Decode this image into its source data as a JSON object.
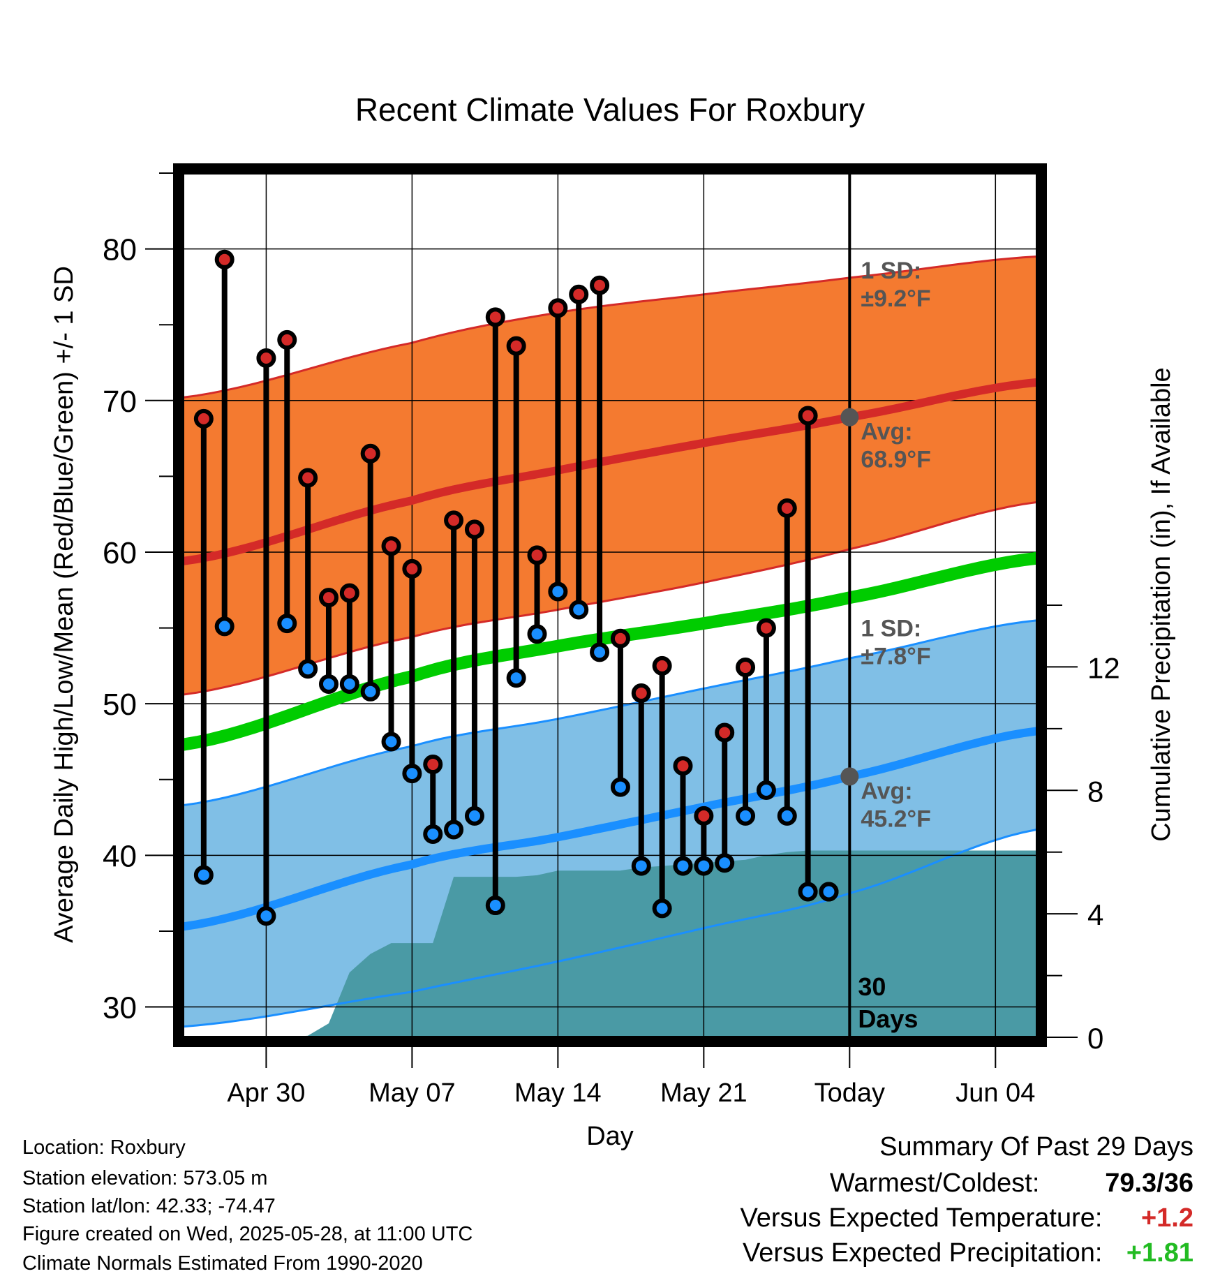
{
  "chart_data": {
    "type": "line",
    "title": "Recent Climate Values For Roxbury",
    "xlabel": "Day",
    "ylabel": "Average Daily High/Low/Mean (Red/Blue/Green) +/- 1 SD",
    "y2label": "Cumulative Precipitation (in), If Available",
    "xlim": [
      "2025-04-26",
      "2025-06-06"
    ],
    "ylim": [
      28,
      85
    ],
    "y2lim": [
      0,
      28
    ],
    "x_ticks": [
      {
        "date": "2025-04-30",
        "label": "Apr 30"
      },
      {
        "date": "2025-05-07",
        "label": "May 07"
      },
      {
        "date": "2025-05-14",
        "label": "May 14"
      },
      {
        "date": "2025-05-21",
        "label": "May 21"
      },
      {
        "date": "2025-05-28",
        "label": "Today"
      },
      {
        "date": "2025-06-04",
        "label": "Jun 04"
      }
    ],
    "y_ticks": [
      30,
      40,
      50,
      60,
      70,
      80
    ],
    "y2_ticks": [
      0,
      4,
      8,
      12
    ],
    "grid": true,
    "today": "2025-05-28",
    "today_label_number": "30",
    "today_label_text": "Days",
    "normals": {
      "high_avg": {
        "x": [
          "2025-04-26",
          "2025-05-07",
          "2025-05-14",
          "2025-05-21",
          "2025-05-28",
          "2025-06-06"
        ],
        "values": [
          59.4,
          63.4,
          65.4,
          67.2,
          68.9,
          71.2
        ],
        "color": "#d42a28"
      },
      "high_band_upper": {
        "x": [
          "2025-04-26",
          "2025-05-07",
          "2025-05-14",
          "2025-05-21",
          "2025-05-28",
          "2025-06-06"
        ],
        "values": [
          70.2,
          73.8,
          75.8,
          77.0,
          78.1,
          79.5
        ],
        "color": "#f47a30"
      },
      "high_band_lower": {
        "x": [
          "2025-04-26",
          "2025-05-07",
          "2025-05-14",
          "2025-05-21",
          "2025-05-28",
          "2025-06-06"
        ],
        "values": [
          50.6,
          54.4,
          56.2,
          58.0,
          60.2,
          63.3
        ],
        "color": "#f47a30"
      },
      "mean_avg": {
        "x": [
          "2025-04-26",
          "2025-05-07",
          "2025-05-14",
          "2025-05-21",
          "2025-05-28",
          "2025-06-06"
        ],
        "values": [
          47.3,
          51.8,
          53.8,
          55.3,
          57.0,
          59.6
        ],
        "color": "#00cc00"
      },
      "low_avg": {
        "x": [
          "2025-04-26",
          "2025-05-07",
          "2025-05-14",
          "2025-05-21",
          "2025-05-28",
          "2025-06-06"
        ],
        "values": [
          35.3,
          39.4,
          41.2,
          43.2,
          45.2,
          48.2
        ],
        "color": "#1a8fff"
      },
      "low_band_upper": {
        "x": [
          "2025-04-26",
          "2025-05-07",
          "2025-05-14",
          "2025-05-21",
          "2025-05-28",
          "2025-06-06"
        ],
        "values": [
          43.3,
          47.2,
          49.0,
          51.0,
          53.0,
          55.5
        ],
        "color": "#80bfe6"
      },
      "low_band_lower": {
        "x": [
          "2025-04-26",
          "2025-05-07",
          "2025-05-14",
          "2025-05-21",
          "2025-05-28",
          "2025-06-06"
        ],
        "values": [
          28.7,
          31.0,
          33.0,
          35.2,
          37.5,
          41.7
        ],
        "color": "#80bfe6"
      }
    },
    "daily": {
      "x": [
        "2025-04-27",
        "2025-04-28",
        "2025-04-30",
        "2025-05-01",
        "2025-05-02",
        "2025-05-03",
        "2025-05-04",
        "2025-05-05",
        "2025-05-06",
        "2025-05-07",
        "2025-05-08",
        "2025-05-09",
        "2025-05-10",
        "2025-05-11",
        "2025-05-12",
        "2025-05-13",
        "2025-05-14",
        "2025-05-15",
        "2025-05-16",
        "2025-05-17",
        "2025-05-18",
        "2025-05-19",
        "2025-05-20",
        "2025-05-21",
        "2025-05-22",
        "2025-05-23",
        "2025-05-24",
        "2025-05-25",
        "2025-05-26",
        "2025-05-27"
      ],
      "high": [
        68.8,
        79.3,
        72.8,
        74.0,
        64.9,
        57.0,
        57.3,
        66.5,
        60.4,
        58.9,
        46.0,
        62.1,
        61.5,
        75.5,
        73.6,
        59.8,
        76.1,
        77.0,
        77.6,
        54.3,
        50.7,
        52.5,
        45.9,
        42.6,
        48.1,
        52.4,
        55.0,
        62.9,
        69.0,
        37.6
      ],
      "low": [
        38.7,
        55.1,
        36.0,
        55.3,
        52.3,
        51.3,
        51.3,
        50.8,
        47.5,
        45.4,
        41.4,
        41.7,
        42.6,
        36.7,
        51.7,
        54.6,
        57.4,
        56.2,
        53.4,
        44.5,
        39.3,
        36.5,
        39.3,
        39.3,
        39.5,
        42.6,
        44.3,
        42.6,
        37.6,
        37.6
      ],
      "high_color": "#d42a28",
      "low_color": "#1a8fff"
    },
    "precip": {
      "x": [
        "2025-04-29",
        "2025-04-30",
        "2025-05-01",
        "2025-05-02",
        "2025-05-03",
        "2025-05-04",
        "2025-05-05",
        "2025-05-06",
        "2025-05-07",
        "2025-05-08",
        "2025-05-09",
        "2025-05-10",
        "2025-05-11",
        "2025-05-12",
        "2025-05-13",
        "2025-05-14",
        "2025-05-15",
        "2025-05-16",
        "2025-05-17",
        "2025-05-18",
        "2025-05-19",
        "2025-05-20",
        "2025-05-21",
        "2025-05-22",
        "2025-05-23",
        "2025-05-24",
        "2025-05-25",
        "2025-05-26",
        "2025-05-27",
        "2025-05-28",
        "2025-06-06"
      ],
      "values": [
        0.0,
        0.0,
        0.0,
        0.05,
        0.45,
        2.1,
        2.7,
        3.05,
        3.05,
        3.05,
        5.2,
        5.2,
        5.2,
        5.2,
        5.25,
        5.4,
        5.4,
        5.4,
        5.4,
        5.5,
        5.55,
        5.6,
        5.65,
        5.7,
        5.75,
        5.9,
        6.0,
        6.05,
        6.05,
        6.05,
        6.05
      ],
      "color": "#4a9aa5"
    },
    "annotations": {
      "high_sd_title": "1 SD:",
      "high_sd_value": "±9.2°F",
      "high_avg_title": "Avg:",
      "high_avg_value": "68.9°F",
      "low_sd_title": "1 SD:",
      "low_sd_value": "±7.8°F",
      "low_avg_title": "Avg:",
      "low_avg_value": "45.2°F",
      "color": "#555555"
    }
  },
  "info": {
    "location": "Location: Roxbury",
    "elevation": "Station elevation: 573.05 m",
    "latlon": "Station lat/lon: 42.33; -74.47",
    "created": "Figure created on Wed, 2025-05-28, at 11:00 UTC",
    "normals": "Climate Normals Estimated From 1990-2020"
  },
  "summary": {
    "title": "Summary Of Past 29 Days",
    "warmest_coldest_label": "Warmest/Coldest:",
    "warmest_coldest_value": "79.3/36",
    "temp_label": "Versus Expected Temperature:",
    "temp_value": "+1.2",
    "temp_color": "#d42a28",
    "precip_label": "Versus Expected Precipitation:",
    "precip_value": "+1.81",
    "precip_color": "#22bb22"
  }
}
